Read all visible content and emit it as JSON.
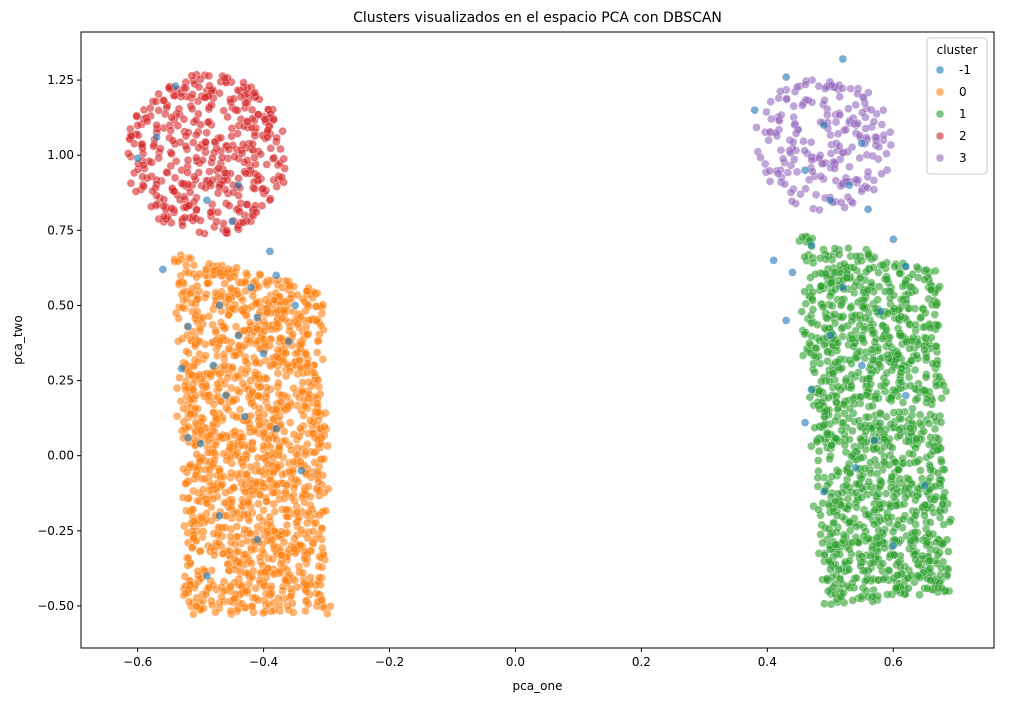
{
  "chart_data": {
    "type": "scatter",
    "title": "Clusters visualizados en el espacio PCA con DBSCAN",
    "xlabel": "pca_one",
    "ylabel": "pca_two",
    "xlim": [
      -0.69,
      0.76
    ],
    "ylim": [
      -0.64,
      1.41
    ],
    "xticks": [
      -0.6,
      -0.4,
      -0.2,
      0.0,
      0.2,
      0.4,
      0.6
    ],
    "xtick_labels": [
      "−0.6",
      "−0.4",
      "−0.2",
      "0.0",
      "0.2",
      "0.4",
      "0.6"
    ],
    "yticks": [
      -0.5,
      -0.25,
      0.0,
      0.25,
      0.5,
      0.75,
      1.0,
      1.25
    ],
    "ytick_labels": [
      "−0.50",
      "−0.25",
      "0.00",
      "0.25",
      "0.50",
      "0.75",
      "1.00",
      "1.25"
    ],
    "grid": false,
    "legend": {
      "title": "cluster",
      "placement": "top-right"
    },
    "marker_opacity": 0.6,
    "series": [
      {
        "name": "-1",
        "color": "#1f77b4",
        "points": [
          [
            -0.54,
            1.23
          ],
          [
            -0.57,
            1.06
          ],
          [
            -0.49,
            0.85
          ],
          [
            -0.45,
            0.78
          ],
          [
            -0.39,
            0.68
          ],
          [
            -0.38,
            0.6
          ],
          [
            -0.42,
            0.56
          ],
          [
            -0.47,
            0.5
          ],
          [
            -0.52,
            0.43
          ],
          [
            -0.41,
            0.46
          ],
          [
            -0.36,
            0.38
          ],
          [
            -0.44,
            0.4
          ],
          [
            -0.48,
            0.3
          ],
          [
            -0.4,
            0.34
          ],
          [
            -0.53,
            0.29
          ],
          [
            -0.46,
            0.2
          ],
          [
            -0.43,
            0.13
          ],
          [
            -0.5,
            0.04
          ],
          [
            -0.38,
            0.09
          ],
          [
            -0.34,
            -0.05
          ],
          [
            -0.47,
            -0.2
          ],
          [
            -0.41,
            -0.28
          ],
          [
            -0.49,
            -0.4
          ],
          [
            -0.52,
            0.06
          ],
          [
            -0.56,
            0.62
          ],
          [
            -0.44,
            0.9
          ],
          [
            -0.35,
            0.5
          ],
          [
            -0.6,
            0.99
          ],
          [
            0.52,
            1.32
          ],
          [
            0.43,
            1.26
          ],
          [
            0.38,
            1.15
          ],
          [
            0.49,
            1.1
          ],
          [
            0.55,
            1.04
          ],
          [
            0.46,
            0.95
          ],
          [
            0.53,
            0.9
          ],
          [
            0.5,
            0.85
          ],
          [
            0.56,
            0.82
          ],
          [
            0.47,
            0.7
          ],
          [
            0.44,
            0.61
          ],
          [
            0.52,
            0.56
          ],
          [
            0.43,
            0.45
          ],
          [
            0.6,
            0.72
          ],
          [
            0.58,
            0.48
          ],
          [
            0.5,
            0.4
          ],
          [
            0.55,
            0.3
          ],
          [
            0.47,
            0.22
          ],
          [
            0.62,
            0.2
          ],
          [
            0.57,
            0.05
          ],
          [
            0.49,
            -0.12
          ],
          [
            0.65,
            -0.1
          ],
          [
            0.6,
            -0.3
          ],
          [
            0.54,
            -0.04
          ],
          [
            0.46,
            0.11
          ],
          [
            0.62,
            0.63
          ],
          [
            0.41,
            0.65
          ]
        ]
      },
      {
        "name": "0",
        "color": "#ff7f0e",
        "cluster": {
          "n": 1500,
          "seed": 11,
          "shape": "quad",
          "quad": [
            [
              -0.52,
              -0.52
            ],
            [
              -0.3,
              -0.52
            ],
            [
              -0.31,
              0.55
            ],
            [
              -0.54,
              0.68
            ]
          ]
        }
      },
      {
        "name": "1",
        "color": "#2ca02c",
        "cluster": {
          "n": 1300,
          "seed": 23,
          "shape": "quad",
          "quad": [
            [
              0.49,
              -0.5
            ],
            [
              0.69,
              -0.45
            ],
            [
              0.67,
              0.62
            ],
            [
              0.45,
              0.73
            ]
          ]
        }
      },
      {
        "name": "2",
        "color": "#d62728",
        "cluster": {
          "n": 420,
          "seed": 37,
          "shape": "ellipse",
          "center": [
            -0.49,
            1.0
          ],
          "radius": [
            0.13,
            0.27
          ]
        }
      },
      {
        "name": "3",
        "color": "#9467bd",
        "cluster": {
          "n": 210,
          "seed": 53,
          "shape": "ellipse",
          "center": [
            0.49,
            1.04
          ],
          "radius": [
            0.11,
            0.23
          ]
        }
      }
    ]
  }
}
